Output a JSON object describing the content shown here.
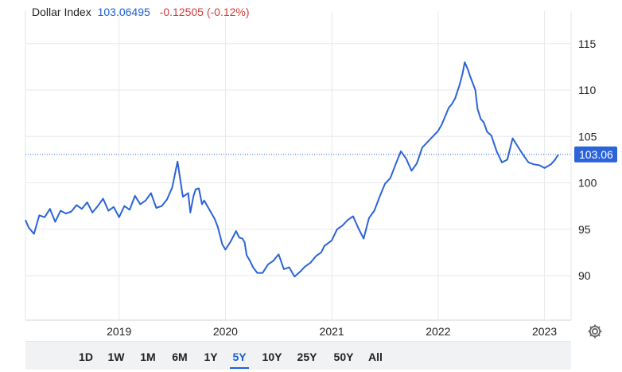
{
  "header": {
    "name": "Dollar Index",
    "value": "103.06495",
    "change": "-0.12505 (-0.12%)"
  },
  "price_badge": "103.06",
  "ranges": [
    "1D",
    "1W",
    "1M",
    "6M",
    "1Y",
    "5Y",
    "10Y",
    "25Y",
    "50Y",
    "All"
  ],
  "active_range": "5Y",
  "icons": {
    "settings": "gear-icon"
  },
  "colors": {
    "line": "#2b63d9",
    "badge": "#2b63d9",
    "change": "#d23b3b",
    "active": "#1f5fd6"
  },
  "chart_data": {
    "type": "line",
    "title": "Dollar Index",
    "xlabel": "",
    "ylabel": "",
    "x_ticks": [
      "2019",
      "2020",
      "2021",
      "2022",
      "2023"
    ],
    "y_ticks": [
      90,
      95,
      100,
      105,
      110,
      115
    ],
    "ylim": [
      85.2,
      118.5
    ],
    "xlim": [
      2018.12,
      2023.25
    ],
    "last_value": 103.06,
    "grid": true,
    "series": [
      {
        "x": [
          2018.12,
          2018.15,
          2018.2,
          2018.25,
          2018.3,
          2018.35,
          2018.4,
          2018.45,
          2018.5,
          2018.55,
          2018.6,
          2018.65,
          2018.7,
          2018.75,
          2018.8,
          2018.85,
          2018.9,
          2018.95,
          2019.0,
          2019.05,
          2019.1,
          2019.15,
          2019.2,
          2019.25,
          2019.3,
          2019.35,
          2019.4,
          2019.45,
          2019.5,
          2019.55,
          2019.6,
          2019.65,
          2019.67,
          2019.7,
          2019.72,
          2019.75,
          2019.78,
          2019.8,
          2019.85,
          2019.9,
          2019.93,
          2019.97,
          2020.0,
          2020.05,
          2020.1,
          2020.13,
          2020.16,
          2020.18,
          2020.2,
          2020.23,
          2020.26,
          2020.3,
          2020.35,
          2020.4,
          2020.45,
          2020.5,
          2020.55,
          2020.6,
          2020.65,
          2020.7,
          2020.75,
          2020.8,
          2020.85,
          2020.9,
          2020.93,
          2021.0,
          2021.05,
          2021.1,
          2021.15,
          2021.2,
          2021.25,
          2021.3,
          2021.35,
          2021.4,
          2021.45,
          2021.5,
          2021.55,
          2021.6,
          2021.65,
          2021.7,
          2021.75,
          2021.8,
          2021.85,
          2021.9,
          2021.95,
          2022.0,
          2022.03,
          2022.06,
          2022.1,
          2022.13,
          2022.16,
          2022.2,
          2022.23,
          2022.25,
          2022.28,
          2022.3,
          2022.35,
          2022.37,
          2022.4,
          2022.43,
          2022.46,
          2022.5,
          2022.55,
          2022.6,
          2022.65,
          2022.7,
          2022.75,
          2022.8,
          2022.85,
          2022.9,
          2022.95,
          2023.0,
          2023.03,
          2023.06,
          2023.1,
          2023.13
        ],
        "values": [
          96.0,
          95.2,
          94.5,
          96.5,
          96.3,
          97.2,
          95.8,
          97.0,
          96.7,
          96.9,
          97.6,
          97.2,
          97.9,
          96.8,
          97.5,
          98.3,
          97.0,
          97.4,
          96.3,
          97.5,
          97.1,
          98.6,
          97.7,
          98.1,
          98.9,
          97.3,
          97.5,
          98.2,
          99.5,
          102.3,
          98.5,
          98.9,
          96.8,
          98.6,
          99.3,
          99.4,
          97.7,
          98.1,
          97.1,
          96.1,
          95.2,
          93.4,
          92.8,
          93.7,
          94.8,
          94.1,
          94.0,
          93.6,
          92.2,
          91.6,
          90.9,
          90.3,
          90.3,
          91.2,
          91.6,
          92.3,
          90.7,
          90.9,
          89.9,
          90.4,
          91.0,
          91.4,
          92.1,
          92.5,
          93.2,
          93.8,
          95.0,
          95.4,
          96.0,
          96.4,
          95.1,
          94.0,
          96.2,
          97.0,
          98.5,
          99.9,
          100.5,
          102.0,
          103.4,
          102.6,
          101.3,
          102.1,
          103.8,
          104.4,
          105.0,
          105.6,
          106.2,
          107.0,
          108.1,
          108.5,
          109.1,
          110.5,
          111.8,
          113.0,
          112.2,
          111.5,
          110.0,
          108.0,
          106.9,
          106.5,
          105.5,
          105.1,
          103.4,
          102.2,
          102.5,
          104.8,
          103.9,
          103.0,
          102.2,
          102.0,
          101.9,
          101.6,
          101.8,
          102.0,
          102.5,
          103.06
        ]
      }
    ]
  }
}
